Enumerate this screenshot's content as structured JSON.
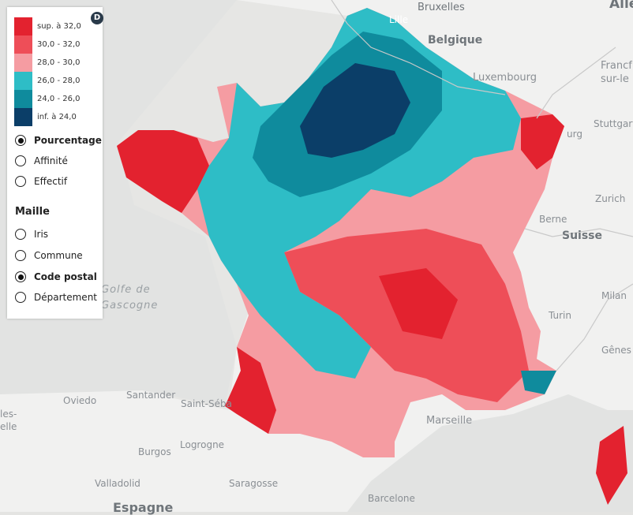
{
  "legend": {
    "badge": "D",
    "classes": [
      {
        "label": "sup. à 32,0",
        "color": "#e3222f"
      },
      {
        "label": "30,0 - 32,0",
        "color": "#ee4e58"
      },
      {
        "label": "28,0 - 30,0",
        "color": "#f59ca2"
      },
      {
        "label": "26,0 - 28,0",
        "color": "#2ebdc6"
      },
      {
        "label": "24,0 - 26,0",
        "color": "#0f8b9d"
      },
      {
        "label": "inf. à 24,0",
        "color": "#0b3e68"
      }
    ]
  },
  "indicator": {
    "options": [
      {
        "label": "Pourcentage",
        "selected": true
      },
      {
        "label": "Affinité",
        "selected": false
      },
      {
        "label": "Effectif",
        "selected": false
      }
    ]
  },
  "maille": {
    "title": "Maille",
    "options": [
      {
        "label": "Iris",
        "selected": false
      },
      {
        "label": "Commune",
        "selected": false
      },
      {
        "label": "Code postal",
        "selected": true
      },
      {
        "label": "Département",
        "selected": false
      }
    ]
  },
  "places": {
    "bruxelles": "Bruxelles",
    "belgique": "Belgique",
    "lille": "Lille",
    "luxembourg": "Luxembourg",
    "allemagne": "Alle",
    "francfort": "Francf\nsur-le",
    "stuttgart": "Stuttgart",
    "strasbourg": "urg",
    "zurich": "Zurich",
    "berne": "Berne",
    "suisse": "Suisse",
    "milan": "Milan",
    "turin": "Turin",
    "genes": "Gênes",
    "golfe": "Golfe de\nGascogne",
    "santander": "Santander",
    "oviedo": "Oviedo",
    "saint_seb": "Saint-Séba",
    "marseille": "Marseille",
    "burgos": "Burgos",
    "logrono": "Logrogne",
    "valladolid": "Valladolid",
    "saragosse": "Saragosse",
    "barcelone": "Barcelone",
    "espagne": "Espagne",
    "les": "les-\nelle"
  }
}
